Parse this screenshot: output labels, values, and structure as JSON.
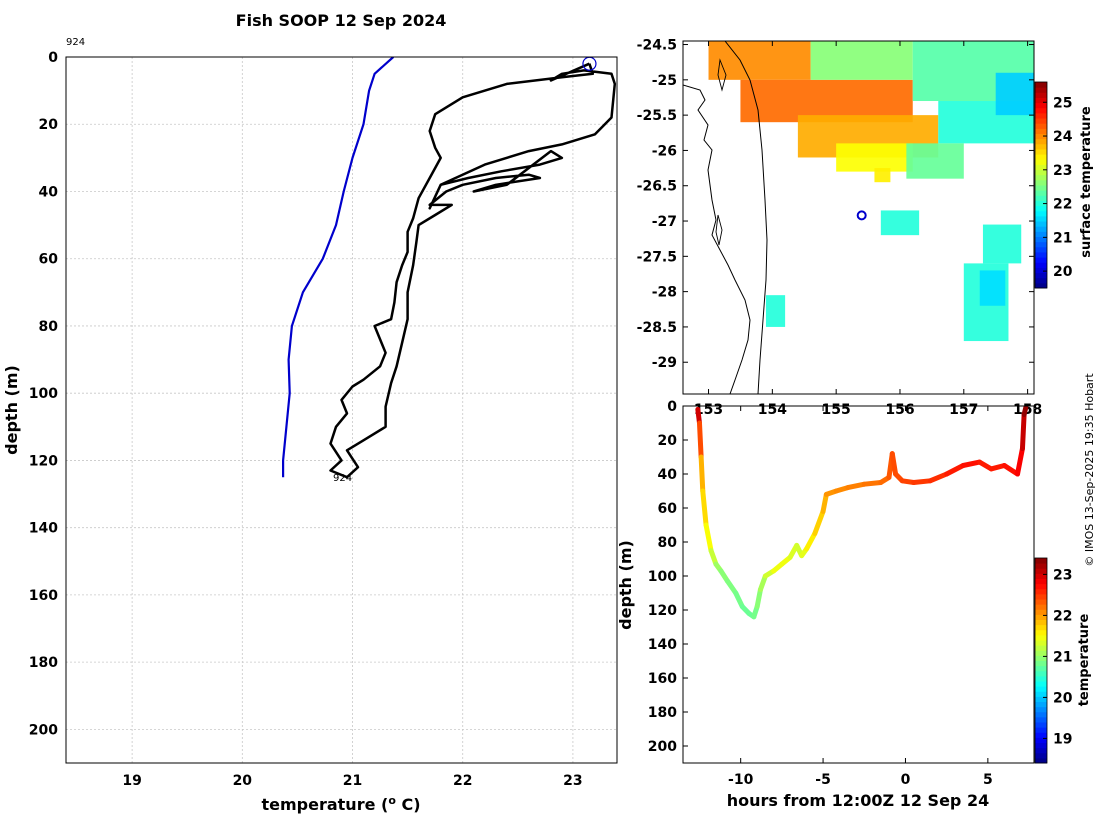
{
  "chart_data": [
    {
      "id": "profile",
      "type": "line",
      "title": "Fish SOOP 12 Sep 2024",
      "xlabel": "temperature (o C)",
      "ylabel": "depth (m)",
      "xlim": [
        18.4,
        23.4
      ],
      "ylim": [
        0,
        210
      ],
      "y_reversed": true,
      "grid": true,
      "xticks": [
        19,
        20,
        21,
        22,
        23
      ],
      "yticks": [
        0,
        20,
        40,
        60,
        80,
        100,
        120,
        140,
        160,
        180,
        200
      ],
      "annotations": [
        {
          "text": "924",
          "x": 18.4,
          "y": -4
        },
        {
          "text": "924",
          "x": 20.8,
          "y": 126
        }
      ],
      "marker": {
        "label": "start",
        "x": 23.15,
        "y": 2,
        "color": "#0000cc"
      },
      "series": [
        {
          "name": "climatology",
          "color": "#0000cc",
          "points": [
            [
              21.37,
              0
            ],
            [
              21.2,
              5
            ],
            [
              21.15,
              10
            ],
            [
              21.1,
              20
            ],
            [
              21.0,
              30
            ],
            [
              20.92,
              40
            ],
            [
              20.85,
              50
            ],
            [
              20.73,
              60
            ],
            [
              20.55,
              70
            ],
            [
              20.45,
              80
            ],
            [
              20.42,
              90
            ],
            [
              20.43,
              100
            ],
            [
              20.4,
              110
            ],
            [
              20.37,
              120
            ],
            [
              20.37,
              125
            ]
          ]
        },
        {
          "name": "observed",
          "color": "#000000",
          "points": [
            [
              23.15,
              2
            ],
            [
              23.18,
              5
            ],
            [
              22.9,
              6
            ],
            [
              22.4,
              8
            ],
            [
              22.0,
              12
            ],
            [
              21.75,
              17
            ],
            [
              21.7,
              22
            ],
            [
              21.75,
              27
            ],
            [
              21.8,
              30
            ],
            [
              21.7,
              36
            ],
            [
              21.6,
              42
            ],
            [
              21.55,
              48
            ],
            [
              21.5,
              52
            ],
            [
              21.5,
              58
            ],
            [
              21.45,
              62
            ],
            [
              21.4,
              67
            ],
            [
              21.38,
              73
            ],
            [
              21.35,
              78
            ],
            [
              21.2,
              80
            ],
            [
              21.25,
              84
            ],
            [
              21.3,
              88
            ],
            [
              21.25,
              92
            ],
            [
              21.1,
              96
            ],
            [
              21.0,
              98
            ],
            [
              20.9,
              102
            ],
            [
              20.95,
              106
            ],
            [
              20.85,
              110
            ],
            [
              20.8,
              115
            ],
            [
              20.9,
              120
            ],
            [
              20.8,
              123
            ],
            [
              20.95,
              125
            ],
            [
              21.05,
              122
            ],
            [
              20.95,
              117
            ],
            [
              21.1,
              114
            ],
            [
              21.3,
              110
            ],
            [
              21.3,
              104
            ],
            [
              21.35,
              97
            ],
            [
              21.4,
              92
            ],
            [
              21.45,
              85
            ],
            [
              21.5,
              78
            ],
            [
              21.5,
              70
            ],
            [
              21.55,
              62
            ],
            [
              21.58,
              55
            ],
            [
              21.6,
              50
            ],
            [
              21.75,
              47
            ],
            [
              21.9,
              44
            ],
            [
              21.7,
              44
            ],
            [
              21.85,
              40
            ],
            [
              22.0,
              38
            ],
            [
              22.3,
              36
            ],
            [
              22.6,
              35
            ],
            [
              22.7,
              36
            ],
            [
              22.3,
              38
            ],
            [
              22.1,
              40
            ],
            [
              22.4,
              38
            ],
            [
              22.8,
              28
            ],
            [
              22.9,
              30
            ],
            [
              22.7,
              32
            ],
            [
              22.35,
              34
            ],
            [
              22.05,
              36
            ],
            [
              21.8,
              38
            ],
            [
              21.7,
              45
            ],
            [
              21.8,
              38
            ],
            [
              22.2,
              32
            ],
            [
              22.6,
              28
            ],
            [
              22.9,
              26
            ],
            [
              23.2,
              23
            ],
            [
              23.35,
              18
            ],
            [
              23.38,
              8
            ],
            [
              23.35,
              5
            ],
            [
              23.1,
              4
            ],
            [
              22.9,
              5
            ],
            [
              22.8,
              7
            ],
            [
              23.15,
              2
            ]
          ]
        }
      ]
    },
    {
      "id": "map",
      "type": "heatmap",
      "xlim": [
        152.6,
        158.1
      ],
      "ylim": [
        -29.45,
        -24.45
      ],
      "xticks": [
        153,
        154,
        155,
        156,
        157,
        158
      ],
      "xtick_labels": [
        "153",
        "154",
        "155",
        "156",
        "157",
        "158"
      ],
      "yticks": [
        -24.5,
        -25,
        -25.5,
        -26,
        -26.5,
        -27,
        -27.5,
        -28,
        -28.5,
        -29
      ],
      "colorbar": {
        "label": "surface temperature",
        "min": 19.5,
        "max": 25.6,
        "ticks": [
          20,
          21,
          22,
          23,
          24,
          25
        ]
      },
      "marker": {
        "label": "vessel",
        "lon": 155.4,
        "lat": -26.92,
        "color": "#0000cc"
      },
      "blocks": [
        {
          "lon": [
            153.0,
            154.6
          ],
          "lat": [
            -25.0,
            -24.45
          ],
          "value": 24.0
        },
        {
          "lon": [
            153.5,
            156.2
          ],
          "lat": [
            -25.6,
            -25.0
          ],
          "value": 24.2
        },
        {
          "lon": [
            154.4,
            156.6
          ],
          "lat": [
            -26.1,
            -25.5
          ],
          "value": 23.8
        },
        {
          "lon": [
            155.0,
            156.2
          ],
          "lat": [
            -26.3,
            -25.9
          ],
          "value": 23.3
        },
        {
          "lon": [
            154.6,
            156.2
          ],
          "lat": [
            -25.0,
            -24.45
          ],
          "value": 22.6
        },
        {
          "lon": [
            156.2,
            158.1
          ],
          "lat": [
            -25.3,
            -24.45
          ],
          "value": 22.3
        },
        {
          "lon": [
            156.6,
            158.1
          ],
          "lat": [
            -25.9,
            -25.3
          ],
          "value": 22.0
        },
        {
          "lon": [
            156.1,
            157.0
          ],
          "lat": [
            -26.4,
            -25.9
          ],
          "value": 22.4
        },
        {
          "lon": [
            157.5,
            158.1
          ],
          "lat": [
            -25.5,
            -24.9
          ],
          "value": 21.5
        },
        {
          "lon": [
            155.7,
            156.3
          ],
          "lat": [
            -27.2,
            -26.85
          ],
          "value": 22.0
        },
        {
          "lon": [
            157.3,
            157.9
          ],
          "lat": [
            -27.6,
            -27.05
          ],
          "value": 22.0
        },
        {
          "lon": [
            157.0,
            157.7
          ],
          "lat": [
            -28.7,
            -27.6
          ],
          "value": 22.0
        },
        {
          "lon": [
            157.25,
            157.65
          ],
          "lat": [
            -28.2,
            -27.7
          ],
          "value": 21.6
        },
        {
          "lon": [
            153.9,
            154.2
          ],
          "lat": [
            -28.5,
            -28.05
          ],
          "value": 22.0
        },
        {
          "lon": [
            155.6,
            155.85
          ],
          "lat": [
            -26.45,
            -26.25
          ],
          "value": 23.4
        }
      ]
    },
    {
      "id": "section",
      "type": "line",
      "xlabel": "hours from 12:00Z 12 Sep 24",
      "ylabel": "depth (m)",
      "xlim": [
        -13.5,
        7.8
      ],
      "ylim": [
        0,
        210
      ],
      "y_reversed": true,
      "xticks": [
        -10,
        -5,
        0,
        5
      ],
      "yticks": [
        0,
        20,
        40,
        60,
        80,
        100,
        120,
        140,
        160,
        180,
        200
      ],
      "colorbar": {
        "label": "temperature",
        "min": 18.4,
        "max": 23.4,
        "ticks": [
          19,
          20,
          21,
          22,
          23
        ]
      },
      "points": [
        [
          -12.6,
          2,
          23.2
        ],
        [
          -12.5,
          10,
          22.8
        ],
        [
          -12.4,
          30,
          22.0
        ],
        [
          -12.3,
          50,
          21.8
        ],
        [
          -12.1,
          70,
          21.6
        ],
        [
          -11.8,
          85,
          21.4
        ],
        [
          -11.5,
          93,
          21.1
        ],
        [
          -11.2,
          97,
          21.0
        ],
        [
          -10.8,
          103,
          20.9
        ],
        [
          -10.3,
          110,
          20.9
        ],
        [
          -9.9,
          118,
          20.8
        ],
        [
          -9.5,
          122,
          20.8
        ],
        [
          -9.2,
          124,
          20.8
        ],
        [
          -9.0,
          118,
          20.9
        ],
        [
          -8.8,
          108,
          21.0
        ],
        [
          -8.5,
          100,
          21.2
        ],
        [
          -8.0,
          97,
          21.4
        ],
        [
          -7.5,
          93,
          21.5
        ],
        [
          -7.0,
          89,
          21.4
        ],
        [
          -6.6,
          82,
          21.3
        ],
        [
          -6.3,
          88,
          21.3
        ],
        [
          -6.0,
          84,
          21.5
        ],
        [
          -5.5,
          75,
          21.7
        ],
        [
          -5.0,
          62,
          21.8
        ],
        [
          -4.8,
          52,
          22.0
        ],
        [
          -4.2,
          50,
          22.1
        ],
        [
          -3.5,
          48,
          22.1
        ],
        [
          -2.5,
          46,
          22.2
        ],
        [
          -1.5,
          45,
          22.2
        ],
        [
          -1.0,
          42,
          22.3
        ],
        [
          -0.8,
          28,
          22.4
        ],
        [
          -0.6,
          40,
          22.4
        ],
        [
          -0.2,
          44,
          22.4
        ],
        [
          0.5,
          45,
          22.5
        ],
        [
          1.5,
          44,
          22.5
        ],
        [
          2.5,
          40,
          22.6
        ],
        [
          3.5,
          35,
          22.7
        ],
        [
          4.5,
          33,
          22.7
        ],
        [
          5.2,
          37,
          22.6
        ],
        [
          6.0,
          35,
          22.7
        ],
        [
          6.8,
          40,
          22.7
        ],
        [
          7.1,
          25,
          22.9
        ],
        [
          7.2,
          5,
          23.2
        ],
        [
          7.3,
          1,
          23.4
        ]
      ]
    }
  ],
  "texts": {
    "title": "Fish SOOP 12 Sep 2024",
    "profile_xlabel_pre": "temperature (",
    "profile_xlabel_sup": "o",
    "profile_xlabel_post": " C)",
    "profile_ylabel": "depth (m)",
    "profile_id_top": "924",
    "profile_id_bottom": "924",
    "map_cbar_label": "surface temperature",
    "section_ylabel": "depth (m)",
    "section_xlabel": "hours from 12:00Z 12 Sep 24",
    "section_cbar_label": "temperature",
    "credit": "© IMOS 13-Sep-2025 19:35 Hobart"
  }
}
